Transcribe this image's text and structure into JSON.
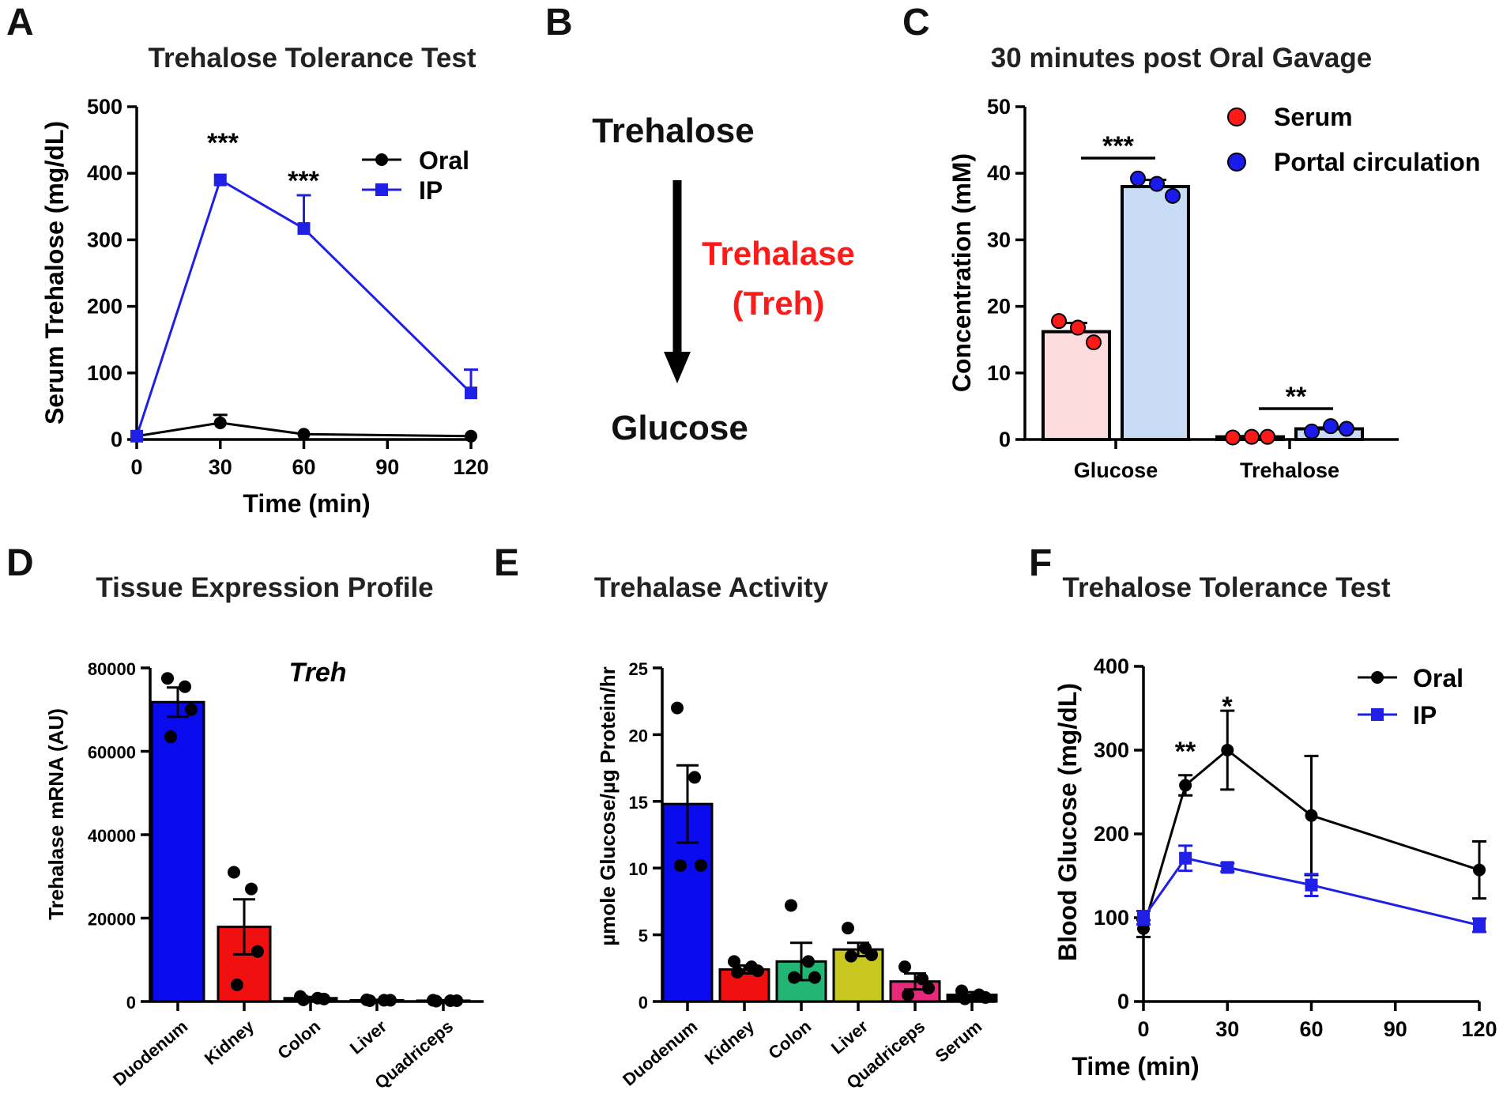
{
  "chart_data": [
    {
      "panel": "A",
      "type": "line",
      "title": "Trehalose Tolerance Test",
      "xlabel": "Time (min)",
      "ylabel": "Serum Trehalose (mg/dL)",
      "xlim": [
        0,
        120
      ],
      "ylim": [
        0,
        500
      ],
      "xticks": [
        0,
        30,
        60,
        90,
        120
      ],
      "yticks": [
        0,
        100,
        200,
        300,
        400,
        500
      ],
      "legend_position": "top-right",
      "series": [
        {
          "name": "Oral",
          "color": "#000000",
          "marker": "circle",
          "x": [
            0,
            30,
            60,
            120
          ],
          "y": [
            5,
            25,
            8,
            5
          ],
          "err": [
            0,
            12,
            0,
            0
          ]
        },
        {
          "name": "IP",
          "color": "#1f1fe6",
          "marker": "square",
          "x": [
            0,
            30,
            60,
            120
          ],
          "y": [
            5,
            390,
            317,
            70
          ],
          "err": [
            0,
            0,
            50,
            35
          ]
        }
      ],
      "annotations": [
        {
          "text": "***",
          "x": 30,
          "y": 420
        },
        {
          "text": "***",
          "x": 60,
          "y": 375
        }
      ]
    },
    {
      "panel": "B",
      "type": "diagram",
      "substrate": "Trehalose",
      "enzyme_line1": "Trehalase",
      "enzyme_line2": "(Treh)",
      "product": "Glucose",
      "enzyme_color": "#ff1a1a"
    },
    {
      "panel": "C",
      "type": "bar",
      "title": "30 minutes post Oral Gavage",
      "ylabel": "Concentration (mM)",
      "categories": [
        "Glucose",
        "Trehalose"
      ],
      "ylim": [
        0,
        50
      ],
      "yticks": [
        0,
        10,
        20,
        30,
        40,
        50
      ],
      "legend_position": "top-right",
      "series": [
        {
          "name": "Serum",
          "color": "#ff1a1a",
          "fill": "#fcdcdc",
          "values": [
            16.2,
            0.4
          ],
          "err": [
            1.3,
            0.1
          ],
          "points": [
            [
              17.8,
              16.8,
              14.6
            ],
            [
              0.3,
              0.4,
              0.4
            ]
          ]
        },
        {
          "name": "Portal circulation",
          "color": "#1a1aee",
          "fill": "#c8dcf6",
          "values": [
            38,
            1.6
          ],
          "err": [
            1.0,
            0.2
          ],
          "points": [
            [
              39.2,
              38.4,
              36.6
            ],
            [
              1.2,
              2.0,
              1.6
            ]
          ]
        }
      ],
      "annotations": [
        {
          "text": "***",
          "category": "Glucose",
          "y": 42
        },
        {
          "text": "**",
          "category": "Trehalose",
          "y": 4.5
        }
      ]
    },
    {
      "panel": "D",
      "type": "bar",
      "title": "Tissue Expression Profile",
      "subtitle": "Treh",
      "ylabel": "Trehalase mRNA (AU)",
      "categories": [
        "Duodenum",
        "Kidney",
        "Colon",
        "Liver",
        "Quadriceps"
      ],
      "ylim": [
        0,
        80000
      ],
      "yticks": [
        0,
        20000,
        40000,
        60000,
        80000
      ],
      "colors": [
        "#0a0aef",
        "#f01010",
        "#000000",
        "#000000",
        "#000000"
      ],
      "values": [
        71800,
        17900,
        800,
        300,
        200
      ],
      "err": [
        3500,
        6600,
        300,
        100,
        100
      ],
      "points": [
        [
          77500,
          75500,
          70000,
          63500
        ],
        [
          31000,
          27000,
          12000,
          4000
        ],
        [
          1200,
          800,
          600,
          400
        ],
        [
          400,
          300,
          300,
          200
        ],
        [
          300,
          200,
          200,
          100
        ]
      ]
    },
    {
      "panel": "E",
      "type": "bar",
      "title": "Trehalase Activity",
      "ylabel": "µmole Glucose/µg Protein/hr",
      "categories": [
        "Duodenum",
        "Kidney",
        "Colon",
        "Liver",
        "Quadriceps",
        "Serum"
      ],
      "ylim": [
        0,
        25
      ],
      "yticks": [
        0,
        5,
        10,
        15,
        20,
        25
      ],
      "colors": [
        "#0a0aef",
        "#f01010",
        "#22b573",
        "#c7c720",
        "#e8287a",
        "#000000"
      ],
      "values": [
        14.8,
        2.4,
        3.0,
        3.9,
        1.5,
        0.5
      ],
      "err": [
        2.9,
        0.3,
        1.4,
        0.5,
        0.6,
        0.2
      ],
      "points": [
        [
          22,
          16.8,
          10.2,
          10.2
        ],
        [
          3.0,
          2.6,
          2.3,
          2.2
        ],
        [
          7.2,
          3.0,
          1.8,
          1.8
        ],
        [
          5.5,
          4.0,
          3.5,
          3.4
        ],
        [
          2.6,
          1.7,
          1.0,
          0.5
        ],
        [
          0.8,
          0.5,
          0.3,
          0.2
        ]
      ]
    },
    {
      "panel": "F",
      "type": "line",
      "title": "Trehalose Tolerance Test",
      "xlabel": "Time (min)",
      "ylabel": "Blood Glucose (mg/dL)",
      "xlim": [
        0,
        120
      ],
      "ylim": [
        0,
        400
      ],
      "xticks": [
        0,
        30,
        60,
        90,
        120
      ],
      "yticks": [
        0,
        100,
        200,
        300,
        400
      ],
      "legend_position": "top-right",
      "series": [
        {
          "name": "Oral",
          "color": "#000000",
          "marker": "circle",
          "x": [
            0,
            15,
            30,
            60,
            120
          ],
          "y": [
            87,
            258,
            300,
            222,
            157
          ],
          "err": [
            10,
            12,
            47,
            71,
            34
          ]
        },
        {
          "name": "IP",
          "color": "#1f1fe6",
          "marker": "square",
          "x": [
            0,
            15,
            30,
            60,
            120
          ],
          "y": [
            100,
            171,
            160,
            139,
            91
          ],
          "err": [
            8,
            15,
            5,
            13,
            8
          ]
        }
      ],
      "annotations": [
        {
          "text": "**",
          "x": 15,
          "y": 290
        },
        {
          "text": "*",
          "x": 30,
          "y": 355
        }
      ]
    }
  ]
}
